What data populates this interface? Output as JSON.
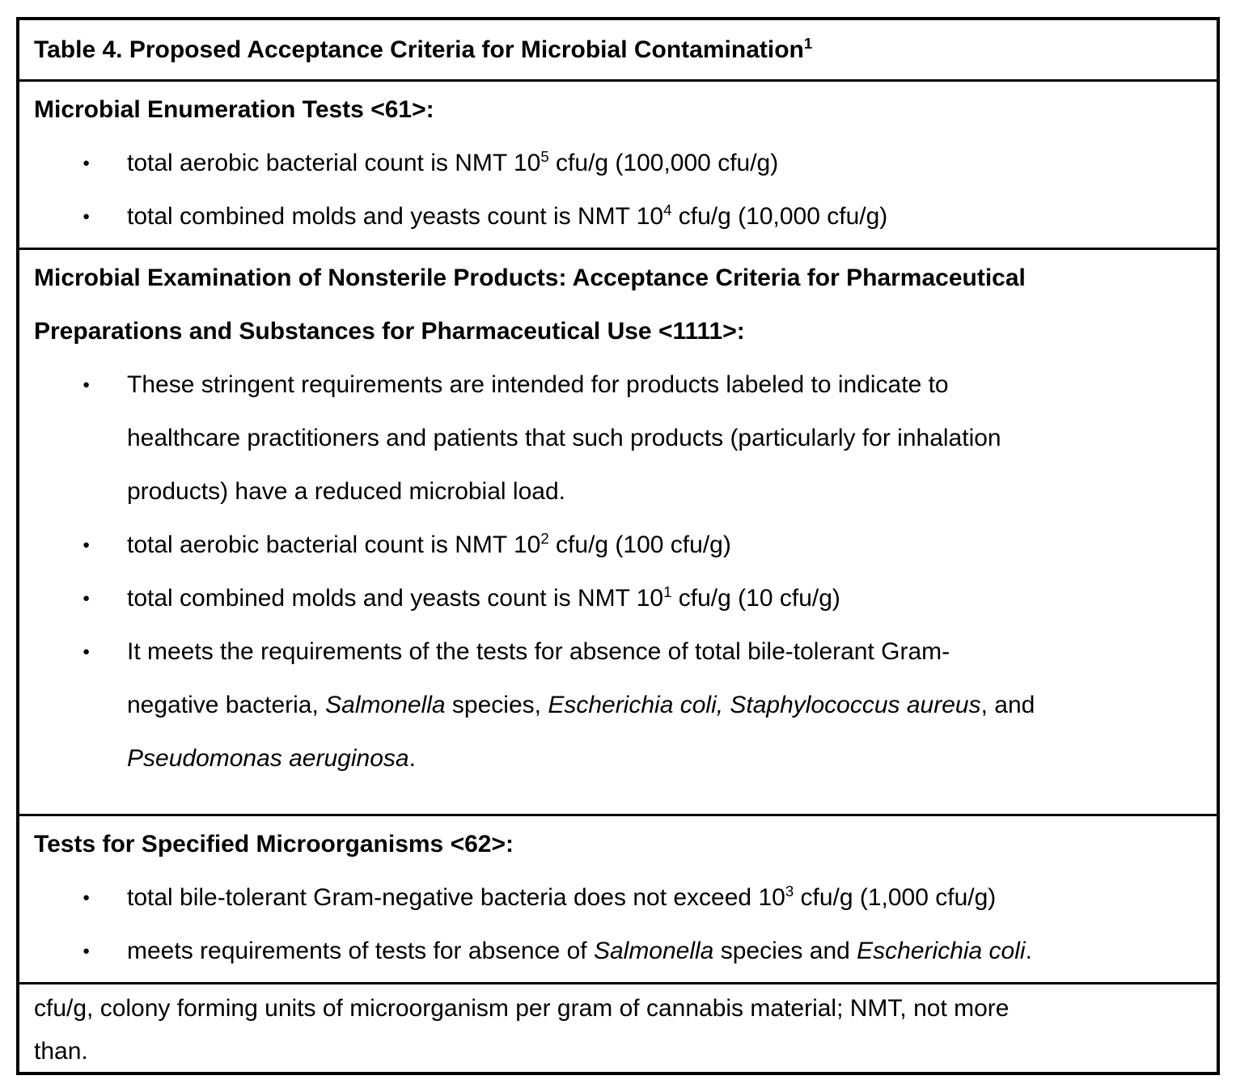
{
  "colors": {
    "page_background": "#ffffff",
    "table_border": "#000000",
    "text": "#000000"
  },
  "table": {
    "title": {
      "runs": [
        {
          "t": "Table 4. Proposed Acceptance Criteria for Microbial Contamination"
        },
        {
          "t": "1",
          "style": "sup"
        }
      ]
    },
    "sections": [
      {
        "id": "microbial-enumeration-tests-61",
        "heading": {
          "runs": [
            {
              "t": "Microbial Enumeration Tests <61>:"
            }
          ]
        },
        "bullets": [
          {
            "runs": [
              {
                "t": "total aerobic bacterial count is NMT 10"
              },
              {
                "t": "5",
                "style": "sup"
              },
              {
                "t": " cfu/g (100,000 cfu/g)"
              }
            ]
          },
          {
            "runs": [
              {
                "t": "total combined molds and yeasts count is NMT 10"
              },
              {
                "t": "4",
                "style": "sup"
              },
              {
                "t": " cfu/g (10,000 cfu/g)"
              }
            ]
          }
        ]
      },
      {
        "id": "microbial-examination-nonsterile-1111",
        "heading": {
          "runs": [
            {
              "t": "Microbial Examination of Nonsterile Products: Acceptance Criteria for Pharmaceutical"
            },
            {
              "br": true
            },
            {
              "t": "Preparations and Substances for Pharmaceutical Use <1111>:"
            }
          ]
        },
        "bullets": [
          {
            "runs": [
              {
                "t": "These stringent requirements are intended for products labeled to indicate to"
              },
              {
                "br": true
              },
              {
                "t": "healthcare practitioners and patients that such products (particularly for inhalation"
              },
              {
                "br": true
              },
              {
                "t": "products) have a reduced microbial load."
              }
            ]
          },
          {
            "runs": [
              {
                "t": "total aerobic bacterial count is NMT 10"
              },
              {
                "t": "2",
                "style": "sup"
              },
              {
                "t": " cfu/g (100 cfu/g)"
              }
            ]
          },
          {
            "runs": [
              {
                "t": "total combined molds and yeasts count is NMT 10"
              },
              {
                "t": "1",
                "style": "sup"
              },
              {
                "t": " cfu/g (10 cfu/g)"
              }
            ]
          },
          {
            "runs": [
              {
                "t": "It meets the requirements of the tests for absence of total bile-tolerant Gram-"
              },
              {
                "br": true
              },
              {
                "t": "negative bacteria, "
              },
              {
                "t": "Salmonella",
                "style": "italic"
              },
              {
                "t": " species, "
              },
              {
                "t": "Escherichia coli, Staphylococcus aureus",
                "style": "italic"
              },
              {
                "t": ", and"
              },
              {
                "br": true
              },
              {
                "t": "Pseudomonas aeruginosa",
                "style": "italic"
              },
              {
                "t": "."
              }
            ]
          }
        ]
      },
      {
        "id": "tests-specified-microorganisms-62",
        "heading": {
          "runs": [
            {
              "t": "Tests for Specified Microorganisms <62>:"
            }
          ]
        },
        "bullets": [
          {
            "runs": [
              {
                "t": "total bile-tolerant Gram-negative bacteria does not exceed 10"
              },
              {
                "t": "3",
                "style": "sup"
              },
              {
                "t": " cfu/g (1,000 cfu/g)"
              }
            ]
          },
          {
            "runs": [
              {
                "t": "meets requirements of tests for absence of "
              },
              {
                "t": "Salmonella",
                "style": "italic"
              },
              {
                "t": " species and "
              },
              {
                "t": "Escherichia coli",
                "style": "italic"
              },
              {
                "t": "."
              }
            ]
          }
        ]
      }
    ],
    "footnote": {
      "runs": [
        {
          "t": "cfu/g, colony forming units of microorganism per gram of cannabis material; NMT, not more"
        },
        {
          "br": true
        },
        {
          "t": "than."
        }
      ]
    }
  }
}
